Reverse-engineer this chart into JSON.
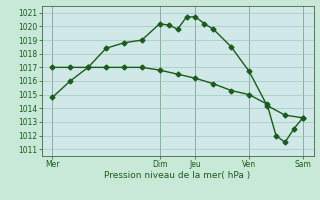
{
  "title": "",
  "xlabel": "Pression niveau de la mer( hPa )",
  "ylim": [
    1010.5,
    1021.5
  ],
  "yticks": [
    1011,
    1012,
    1013,
    1014,
    1015,
    1016,
    1017,
    1018,
    1019,
    1020,
    1021
  ],
  "background_color": "#c8e8d8",
  "plot_bg_color": "#d0e8e8",
  "grid_color": "#a0c8c0",
  "line_color": "#1a5c1a",
  "vline_color": "#446644",
  "x_day_labels": [
    "Mer",
    "Dim",
    "Jeu",
    "Ven",
    "Sam"
  ],
  "x_day_positions": [
    0,
    3,
    4,
    5.5,
    7
  ],
  "x_vlines": [
    0,
    3,
    4,
    5.5,
    7
  ],
  "line1_x": [
    0,
    0.5,
    1,
    1.5,
    2,
    2.5,
    3,
    3.25,
    3.5,
    3.75,
    4,
    4.25,
    4.5,
    5,
    5.5,
    6,
    6.5,
    7
  ],
  "line1_y": [
    1014.8,
    1016.0,
    1017.0,
    1018.4,
    1018.8,
    1019.0,
    1020.2,
    1020.1,
    1019.8,
    1020.7,
    1020.7,
    1020.2,
    1019.8,
    1018.5,
    1016.7,
    1014.2,
    1013.5,
    1013.3
  ],
  "line2_x": [
    0,
    0.5,
    1,
    1.5,
    2,
    2.5,
    3,
    3.5,
    4,
    4.5,
    5,
    5.5,
    6,
    6.25,
    6.5,
    6.75,
    7
  ],
  "line2_y": [
    1017.0,
    1017.0,
    1017.0,
    1017.0,
    1017.0,
    1017.0,
    1016.8,
    1016.5,
    1016.2,
    1015.8,
    1015.3,
    1015.0,
    1014.3,
    1012.0,
    1011.5,
    1012.5,
    1013.3
  ],
  "marker_size": 2.5,
  "linewidth": 1.0
}
